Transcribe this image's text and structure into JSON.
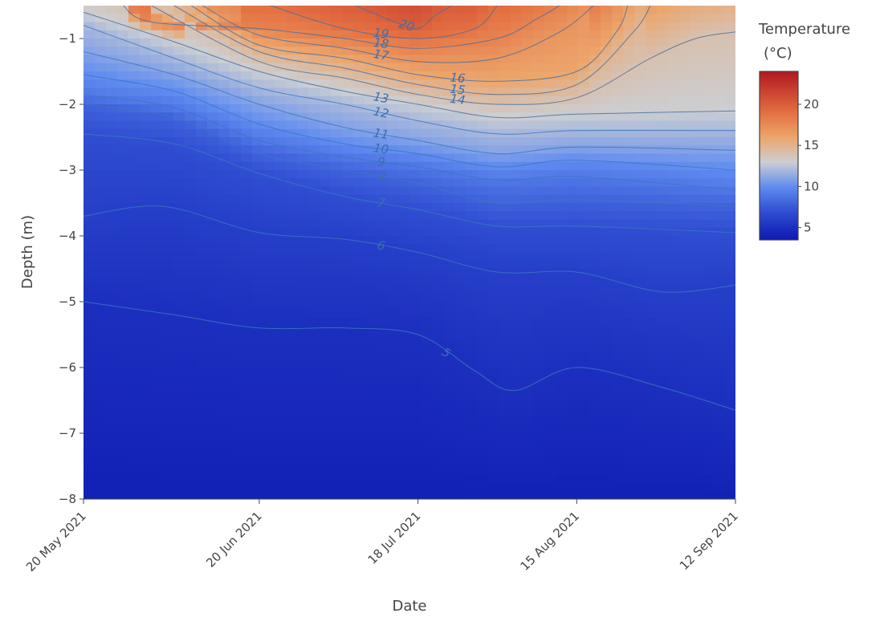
{
  "chart_data": {
    "type": "heatmap",
    "subtype": "contour",
    "title": "",
    "xlabel": "Date",
    "ylabel": "Depth (m)",
    "x_ticks": [
      "20 May 2021",
      "20 Jun 2021",
      "18 Jul 2021",
      "15 Aug 2021",
      "12 Sep 2021"
    ],
    "y_ticks": [
      "−1",
      "−2",
      "−3",
      "−4",
      "−5",
      "−6",
      "−7",
      "−8"
    ],
    "y_tick_values": [
      -1,
      -2,
      -3,
      -4,
      -5,
      -6,
      -7,
      -8
    ],
    "ylim": [
      -8,
      -0.5
    ],
    "xlim": [
      "2021-05-20",
      "2021-09-12"
    ],
    "colorbar": {
      "title_line1": "Temperature",
      "title_line2": "(°C)",
      "ticks": [
        "20",
        "15",
        "10",
        "5"
      ],
      "tick_values": [
        20,
        15,
        10,
        5
      ],
      "range": [
        3.5,
        24
      ],
      "colorscale": "RdBu reversed (blue→white→red)"
    },
    "contour_levels": [
      {
        "level": 5,
        "label": "5",
        "points": [
          [
            "2021-05-20",
            -5.0
          ],
          [
            "2021-06-05",
            -5.2
          ],
          [
            "2021-06-20",
            -5.4
          ],
          [
            "2021-07-05",
            -5.4
          ],
          [
            "2021-07-18",
            -5.5
          ],
          [
            "2021-07-28",
            -6.05
          ],
          [
            "2021-08-04",
            -6.35
          ],
          [
            "2021-08-15",
            -6.0
          ],
          [
            "2021-08-30",
            -6.3
          ],
          [
            "2021-09-12",
            -6.65
          ]
        ]
      },
      {
        "level": 6,
        "label": "6",
        "points": [
          [
            "2021-05-20",
            -3.7
          ],
          [
            "2021-06-03",
            -3.55
          ],
          [
            "2021-06-20",
            -3.95
          ],
          [
            "2021-07-05",
            -4.05
          ],
          [
            "2021-07-18",
            -4.25
          ],
          [
            "2021-08-01",
            -4.55
          ],
          [
            "2021-08-15",
            -4.55
          ],
          [
            "2021-08-30",
            -4.85
          ],
          [
            "2021-09-12",
            -4.75
          ]
        ]
      },
      {
        "level": 7,
        "label": "7",
        "points": [
          [
            "2021-05-20",
            -2.45
          ],
          [
            "2021-06-05",
            -2.6
          ],
          [
            "2021-06-20",
            -3.05
          ],
          [
            "2021-07-05",
            -3.4
          ],
          [
            "2021-07-18",
            -3.6
          ],
          [
            "2021-08-01",
            -3.85
          ],
          [
            "2021-08-15",
            -3.85
          ],
          [
            "2021-09-12",
            -3.95
          ]
        ]
      },
      {
        "level": 8,
        "label": "8",
        "points": [
          [
            "2021-05-20",
            -2.0
          ],
          [
            "2021-06-05",
            -2.2
          ],
          [
            "2021-06-20",
            -2.75
          ],
          [
            "2021-07-05",
            -3.0
          ],
          [
            "2021-07-18",
            -3.2
          ],
          [
            "2021-08-01",
            -3.5
          ],
          [
            "2021-08-15",
            -3.45
          ],
          [
            "2021-09-12",
            -3.55
          ]
        ]
      },
      {
        "level": 9,
        "label": "9",
        "points": [
          [
            "2021-05-20",
            -1.85
          ],
          [
            "2021-06-05",
            -2.05
          ],
          [
            "2021-06-20",
            -2.55
          ],
          [
            "2021-07-05",
            -2.8
          ],
          [
            "2021-07-18",
            -2.95
          ],
          [
            "2021-08-01",
            -3.15
          ],
          [
            "2021-08-15",
            -3.1
          ],
          [
            "2021-09-12",
            -3.3
          ]
        ]
      },
      {
        "level": 10,
        "label": "10",
        "points": [
          [
            "2021-05-20",
            -1.55
          ],
          [
            "2021-06-05",
            -1.8
          ],
          [
            "2021-06-20",
            -2.3
          ],
          [
            "2021-07-05",
            -2.6
          ],
          [
            "2021-07-18",
            -2.75
          ],
          [
            "2021-08-01",
            -2.95
          ],
          [
            "2021-08-15",
            -2.85
          ],
          [
            "2021-09-12",
            -3.0
          ]
        ]
      },
      {
        "level": 11,
        "label": "11",
        "points": [
          [
            "2021-05-20",
            -1.2
          ],
          [
            "2021-06-05",
            -1.55
          ],
          [
            "2021-06-20",
            -2.0
          ],
          [
            "2021-07-05",
            -2.35
          ],
          [
            "2021-07-18",
            -2.55
          ],
          [
            "2021-08-01",
            -2.75
          ],
          [
            "2021-08-15",
            -2.65
          ],
          [
            "2021-09-12",
            -2.7
          ]
        ]
      },
      {
        "level": 12,
        "label": "12",
        "points": [
          [
            "2021-05-20",
            -0.8
          ],
          [
            "2021-06-05",
            -1.3
          ],
          [
            "2021-06-20",
            -1.75
          ],
          [
            "2021-07-05",
            -2.0
          ],
          [
            "2021-07-18",
            -2.25
          ],
          [
            "2021-08-01",
            -2.45
          ],
          [
            "2021-08-15",
            -2.4
          ],
          [
            "2021-09-12",
            -2.4
          ]
        ]
      },
      {
        "level": 13,
        "label": "13",
        "points": [
          [
            "2021-05-20",
            -0.6
          ],
          [
            "2021-06-05",
            -1.05
          ],
          [
            "2021-06-20",
            -1.5
          ],
          [
            "2021-07-05",
            -1.8
          ],
          [
            "2021-07-18",
            -2.0
          ],
          [
            "2021-08-01",
            -2.2
          ],
          [
            "2021-08-15",
            -2.15
          ],
          [
            "2021-09-12",
            -2.1
          ]
        ]
      },
      {
        "level": 14,
        "label": "14",
        "points": [
          [
            "2021-06-01",
            -0.5
          ],
          [
            "2021-06-20",
            -1.35
          ],
          [
            "2021-07-05",
            -1.6
          ],
          [
            "2021-07-18",
            -1.85
          ],
          [
            "2021-08-01",
            -2.0
          ],
          [
            "2021-08-15",
            -1.9
          ],
          [
            "2021-08-28",
            -1.3
          ],
          [
            "2021-09-05",
            -1.0
          ],
          [
            "2021-09-12",
            -0.9
          ]
        ]
      },
      {
        "level": 15,
        "label": "15",
        "points": [
          [
            "2021-06-05",
            -0.5
          ],
          [
            "2021-06-20",
            -1.2
          ],
          [
            "2021-07-05",
            -1.45
          ],
          [
            "2021-07-18",
            -1.7
          ],
          [
            "2021-08-01",
            -1.85
          ],
          [
            "2021-08-15",
            -1.7
          ],
          [
            "2021-08-25",
            -0.9
          ],
          [
            "2021-08-28",
            -0.5
          ]
        ]
      },
      {
        "level": 16,
        "label": "16",
        "points": [
          [
            "2021-06-08",
            -0.5
          ],
          [
            "2021-06-20",
            -1.1
          ],
          [
            "2021-07-05",
            -1.3
          ],
          [
            "2021-07-18",
            -1.55
          ],
          [
            "2021-08-01",
            -1.65
          ],
          [
            "2021-08-15",
            -1.5
          ],
          [
            "2021-08-22",
            -0.9
          ],
          [
            "2021-08-24",
            -0.5
          ]
        ]
      },
      {
        "level": 17,
        "label": "17",
        "points": [
          [
            "2021-06-10",
            -0.5
          ],
          [
            "2021-06-20",
            -0.95
          ],
          [
            "2021-07-05",
            -1.15
          ],
          [
            "2021-07-18",
            -1.35
          ],
          [
            "2021-08-01",
            -1.3
          ],
          [
            "2021-08-12",
            -0.9
          ],
          [
            "2021-08-18",
            -0.5
          ]
        ]
      },
      {
        "level": 18,
        "label": "18",
        "points": [
          [
            "2021-05-27",
            -0.5
          ],
          [
            "2021-06-01",
            -0.75
          ],
          [
            "2021-06-20",
            -0.85
          ],
          [
            "2021-07-05",
            -1.0
          ],
          [
            "2021-07-18",
            -1.15
          ],
          [
            "2021-08-01",
            -1.0
          ],
          [
            "2021-08-08",
            -0.7
          ],
          [
            "2021-08-12",
            -0.5
          ]
        ]
      },
      {
        "level": 19,
        "label": "19",
        "points": [
          [
            "2021-06-22",
            -0.5
          ],
          [
            "2021-07-05",
            -0.85
          ],
          [
            "2021-07-18",
            -1.0
          ],
          [
            "2021-07-28",
            -0.85
          ],
          [
            "2021-08-01",
            -0.5
          ]
        ]
      },
      {
        "level": 20,
        "label": "20",
        "points": [
          [
            "2021-07-07",
            -0.5
          ],
          [
            "2021-07-14",
            -0.75
          ],
          [
            "2021-07-18",
            -0.85
          ],
          [
            "2021-07-21",
            -0.65
          ],
          [
            "2021-07-24",
            -0.5
          ]
        ]
      }
    ],
    "temperature_field_profile": [
      {
        "date": "2021-05-20",
        "temps_top_to_bottom": [
          13,
          11,
          9.5,
          8,
          6.5,
          5.2,
          4.4,
          4.0
        ]
      },
      {
        "date": "2021-06-20",
        "temps_top_to_bottom": [
          18.5,
          14,
          10.5,
          8,
          6.4,
          5.3,
          4.5,
          4.0
        ]
      },
      {
        "date": "2021-07-18",
        "temps_top_to_bottom": [
          21,
          17,
          12.5,
          9,
          6.8,
          5.4,
          4.6,
          4.1
        ]
      },
      {
        "date": "2021-08-15",
        "temps_top_to_bottom": [
          17.5,
          16,
          13,
          9.5,
          7.2,
          5.8,
          4.8,
          4.2
        ]
      },
      {
        "date": "2021-09-12",
        "temps_top_to_bottom": [
          15,
          14.5,
          12.5,
          9.8,
          7.5,
          6.2,
          5.0,
          4.3
        ]
      }
    ]
  }
}
